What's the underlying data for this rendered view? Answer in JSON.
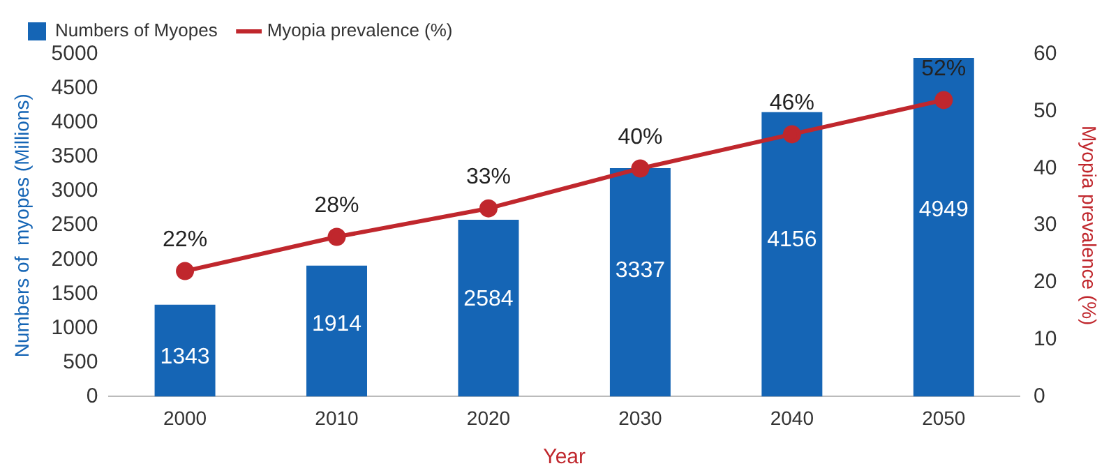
{
  "chart_data": {
    "type": "bar",
    "xlabel": "Year",
    "ylabel": "Numbers of  myopes (Millions)",
    "y2label": "Myopia prevalence (%)",
    "categories": [
      "2000",
      "2010",
      "2020",
      "2030",
      "2040",
      "2050"
    ],
    "series": [
      {
        "name": "Numbers of Myopes",
        "color": "#1565b5",
        "values": [
          1343,
          1914,
          2584,
          3337,
          4156,
          4949
        ],
        "value_labels": [
          "1343",
          "1914",
          "2584",
          "3337",
          "4156",
          "4949"
        ]
      },
      {
        "name": "Myopia prevalence (%)",
        "type": "line",
        "axis": "y2",
        "color": "#c0272d",
        "values": [
          22,
          28,
          33,
          40,
          46,
          52
        ],
        "value_labels": [
          "22%",
          "28%",
          "33%",
          "40%",
          "46%",
          "52%"
        ]
      }
    ],
    "ylim": [
      0,
      5000
    ],
    "yticks": [
      0,
      500,
      1000,
      1500,
      2000,
      2500,
      3000,
      3500,
      4000,
      4500,
      5000
    ],
    "y2lim": [
      0,
      60
    ],
    "y2ticks": [
      0,
      10,
      20,
      30,
      40,
      50,
      60
    ],
    "grid": false,
    "legend": "top left",
    "marker": "circle",
    "line_style": "solid"
  }
}
